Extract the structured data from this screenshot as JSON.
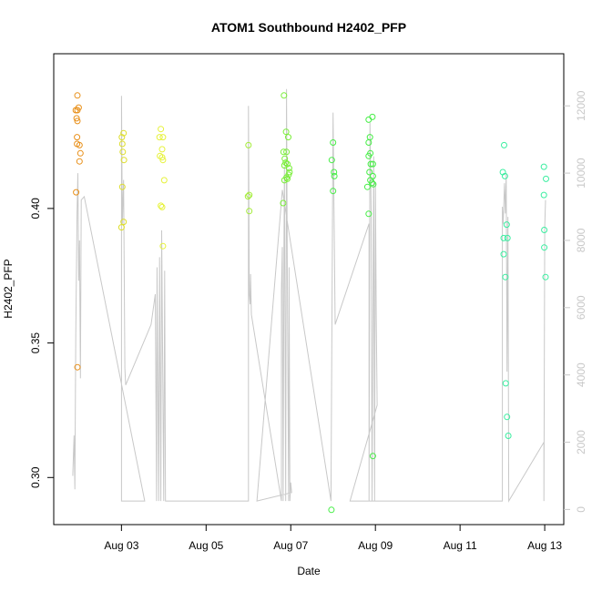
{
  "chart_data": {
    "type": "scatter",
    "title": "ATOM1 Southbound H2402_PFP",
    "xlabel": "Date",
    "ylabel": "H2402_PFP",
    "x_ticks": [
      {
        "day": 3,
        "label": "Aug 03"
      },
      {
        "day": 5,
        "label": "Aug 05"
      },
      {
        "day": 7,
        "label": "Aug 07"
      },
      {
        "day": 9,
        "label": "Aug 09"
      },
      {
        "day": 11,
        "label": "Aug 11"
      },
      {
        "day": 13,
        "label": "Aug 13"
      }
    ],
    "xlim_days": [
      1.4,
      13.45
    ],
    "y_left_ticks": [
      {
        "value": 0.3,
        "label": "0.30"
      },
      {
        "value": 0.35,
        "label": "0.35"
      },
      {
        "value": 0.4,
        "label": "0.40"
      }
    ],
    "ylim_left": [
      0.2825,
      0.4575
    ],
    "y_right_ticks": [
      {
        "value": 0,
        "label": "0"
      },
      {
        "value": 2000,
        "label": "2000"
      },
      {
        "value": 4000,
        "label": "4000"
      },
      {
        "value": 6000,
        "label": "6000"
      },
      {
        "value": 8000,
        "label": "8000"
      },
      {
        "value": 10000,
        "label": "10000"
      },
      {
        "value": 12000,
        "label": "12000"
      }
    ],
    "ylim_right": [
      -450,
      13550
    ],
    "colors": {
      "line": "#c8c8c8",
      "axis": "#000000",
      "right_axis": "#c8c8c8"
    },
    "series": [
      {
        "color": "#e8901a",
        "points": [
          [
            1.96,
            0.442
          ],
          [
            1.92,
            0.4365
          ],
          [
            1.99,
            0.4375
          ],
          [
            1.96,
            0.4365
          ],
          [
            1.94,
            0.4335
          ],
          [
            1.96,
            0.4325
          ],
          [
            1.95,
            0.4265
          ],
          [
            1.95,
            0.424
          ],
          [
            2.01,
            0.4235
          ],
          [
            2.03,
            0.4205
          ],
          [
            2.01,
            0.4175
          ],
          [
            1.93,
            0.406
          ],
          [
            1.96,
            0.341
          ]
        ]
      },
      {
        "color": "#dede2a",
        "points": [
          [
            3.05,
            0.428
          ],
          [
            3.01,
            0.4265
          ],
          [
            3.02,
            0.424
          ],
          [
            3.03,
            0.421
          ],
          [
            3.06,
            0.418
          ],
          [
            3.02,
            0.408
          ],
          [
            3.05,
            0.395
          ],
          [
            3.0,
            0.393
          ]
        ]
      },
      {
        "color": "#e6f23a",
        "points": [
          [
            3.93,
            0.4295
          ],
          [
            3.9,
            0.4265
          ],
          [
            3.98,
            0.4265
          ],
          [
            3.96,
            0.422
          ],
          [
            3.91,
            0.4195
          ],
          [
            3.96,
            0.419
          ],
          [
            3.98,
            0.418
          ],
          [
            4.01,
            0.4105
          ],
          [
            3.93,
            0.401
          ],
          [
            3.96,
            0.4005
          ],
          [
            3.98,
            0.386
          ]
        ]
      },
      {
        "color": "#a4ec3a",
        "points": [
          [
            6.0,
            0.4235
          ],
          [
            6.02,
            0.405
          ],
          [
            5.99,
            0.4045
          ],
          [
            6.02,
            0.399
          ]
        ]
      },
      {
        "color": "#7aee3a",
        "points": [
          [
            6.84,
            0.442
          ],
          [
            6.89,
            0.4285
          ],
          [
            6.94,
            0.4265
          ],
          [
            6.83,
            0.421
          ],
          [
            6.9,
            0.421
          ],
          [
            6.86,
            0.4185
          ],
          [
            6.88,
            0.417
          ],
          [
            6.92,
            0.4165
          ],
          [
            6.85,
            0.416
          ],
          [
            6.96,
            0.415
          ],
          [
            6.97,
            0.4135
          ],
          [
            6.95,
            0.4125
          ],
          [
            6.9,
            0.4115
          ],
          [
            6.85,
            0.4105
          ],
          [
            6.92,
            0.411
          ],
          [
            6.82,
            0.402
          ]
        ]
      },
      {
        "color": "#46ee46",
        "points": [
          [
            8.0,
            0.4245
          ],
          [
            7.97,
            0.418
          ],
          [
            8.02,
            0.4135
          ],
          [
            8.03,
            0.412
          ],
          [
            8.0,
            0.4065
          ],
          [
            7.96,
            0.288
          ],
          [
            8.84,
            0.433
          ],
          [
            8.93,
            0.434
          ],
          [
            8.87,
            0.4265
          ],
          [
            8.84,
            0.4245
          ],
          [
            8.84,
            0.4195
          ],
          [
            8.88,
            0.4205
          ],
          [
            8.89,
            0.4165
          ],
          [
            8.94,
            0.4165
          ],
          [
            8.86,
            0.4135
          ],
          [
            8.94,
            0.412
          ],
          [
            8.88,
            0.4105
          ],
          [
            8.95,
            0.409
          ],
          [
            8.92,
            0.4095
          ],
          [
            8.81,
            0.408
          ],
          [
            8.84,
            0.398
          ],
          [
            8.94,
            0.308
          ]
        ]
      },
      {
        "color": "#3aeea0",
        "points": [
          [
            12.04,
            0.4235
          ],
          [
            12.01,
            0.4135
          ],
          [
            12.06,
            0.412
          ],
          [
            12.1,
            0.394
          ],
          [
            12.03,
            0.389
          ],
          [
            12.12,
            0.389
          ],
          [
            12.03,
            0.383
          ],
          [
            12.07,
            0.3745
          ],
          [
            12.08,
            0.335
          ],
          [
            12.11,
            0.3225
          ],
          [
            12.14,
            0.3155
          ],
          [
            12.98,
            0.4155
          ],
          [
            13.03,
            0.411
          ],
          [
            12.98,
            0.405
          ],
          [
            12.99,
            0.392
          ],
          [
            12.99,
            0.3855
          ],
          [
            13.02,
            0.3745
          ]
        ]
      }
    ],
    "line_points": [
      [
        1.85,
        1000
      ],
      [
        1.88,
        2200
      ],
      [
        1.9,
        600
      ],
      [
        1.92,
        5200
      ],
      [
        1.95,
        8800
      ],
      [
        1.97,
        10000
      ],
      [
        1.99,
        6800
      ],
      [
        2.01,
        8000
      ],
      [
        2.03,
        3900
      ],
      [
        2.05,
        9200
      ],
      [
        2.12,
        9300
      ],
      [
        3.55,
        250
      ],
      [
        3.0,
        250
      ],
      [
        3.0,
        12300
      ],
      [
        3.02,
        8500
      ],
      [
        3.05,
        9800
      ],
      [
        3.08,
        4200
      ],
      [
        3.1,
        3700
      ],
      [
        3.7,
        5500
      ],
      [
        3.8,
        6400
      ],
      [
        3.83,
        250
      ],
      [
        3.84,
        7200
      ],
      [
        3.88,
        250
      ],
      [
        3.9,
        7500
      ],
      [
        3.93,
        250
      ],
      [
        3.95,
        8300
      ],
      [
        4.0,
        250
      ],
      [
        4.02,
        7100
      ],
      [
        4.04,
        250
      ],
      [
        6.0,
        250
      ],
      [
        6.0,
        12000
      ],
      [
        6.02,
        6400
      ],
      [
        6.04,
        6100
      ],
      [
        6.05,
        7000
      ],
      [
        6.07,
        5800
      ],
      [
        6.78,
        250
      ],
      [
        6.78,
        6500
      ],
      [
        6.8,
        7800
      ],
      [
        6.82,
        250
      ],
      [
        6.84,
        7900
      ],
      [
        6.85,
        10200
      ],
      [
        6.88,
        250
      ],
      [
        6.9,
        12500
      ],
      [
        6.92,
        6800
      ],
      [
        6.95,
        250
      ],
      [
        6.96,
        7200
      ],
      [
        6.98,
        250
      ],
      [
        7.0,
        800
      ],
      [
        7.02,
        500
      ],
      [
        6.2,
        250
      ],
      [
        6.8,
        9500
      ],
      [
        7.95,
        250
      ],
      [
        8.0,
        11800
      ],
      [
        8.02,
        9000
      ],
      [
        8.05,
        5500
      ],
      [
        8.85,
        8500
      ],
      [
        8.85,
        250
      ],
      [
        8.87,
        11500
      ],
      [
        8.9,
        8900
      ],
      [
        8.92,
        250
      ],
      [
        8.94,
        5200
      ],
      [
        8.96,
        10500
      ],
      [
        8.98,
        250
      ],
      [
        9.0,
        9700
      ],
      [
        9.02,
        5800
      ],
      [
        9.04,
        3100
      ],
      [
        8.4,
        250
      ],
      [
        12.0,
        250
      ],
      [
        12.0,
        9000
      ],
      [
        12.02,
        8500
      ],
      [
        12.05,
        9700
      ],
      [
        12.07,
        8800
      ],
      [
        12.09,
        10000
      ],
      [
        12.11,
        4100
      ],
      [
        12.13,
        8700
      ],
      [
        12.15,
        250
      ],
      [
        12.98,
        2000
      ],
      [
        12.98,
        250
      ],
      [
        13.0,
        8400
      ],
      [
        13.02,
        9200
      ]
    ]
  }
}
